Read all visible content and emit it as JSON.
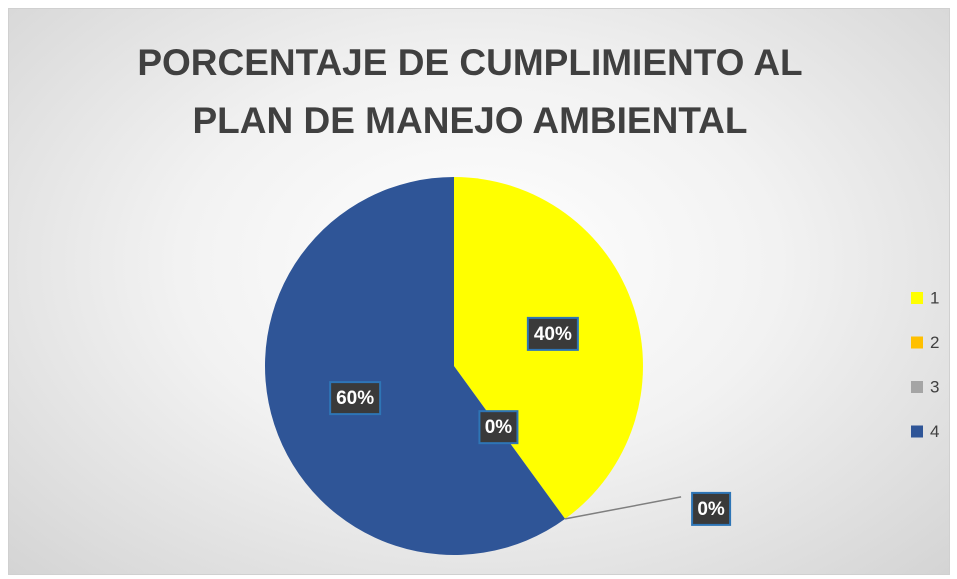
{
  "chart_data": {
    "type": "pie",
    "title": "PORCENTAJE DE CUMPLIMIENTO AL PLAN DE MANEJO AMBIENTAL",
    "categories": [
      "1",
      "2",
      "3",
      "4"
    ],
    "values": [
      40,
      0,
      0,
      60
    ],
    "value_labels": [
      "40%",
      "0%",
      "0%",
      "60%"
    ],
    "colors": [
      "#ffff00",
      "#ffc000",
      "#a5a5a5",
      "#2f5597"
    ],
    "legend": "right"
  }
}
